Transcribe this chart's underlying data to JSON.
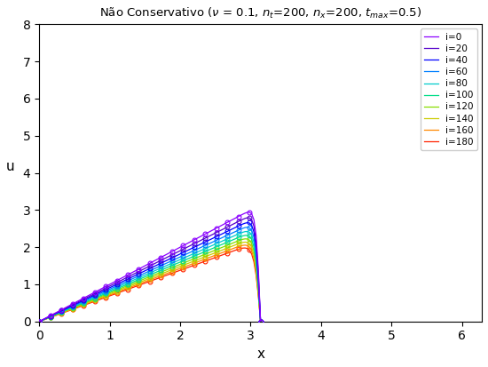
{
  "title": "Não Conservativo (ν = 0.1, $n_t$=200, $n_x$=200, $t_{max}$=0.5)",
  "xlabel": "x",
  "ylabel": "u",
  "xlim": [
    0,
    6.283185307
  ],
  "ylim": [
    0,
    8
  ],
  "nu": 0.1,
  "nt": 200,
  "nx": 200,
  "tmax": 0.5,
  "time_indices": [
    0,
    20,
    40,
    60,
    80,
    100,
    120,
    140,
    160,
    180
  ],
  "legend_labels": [
    "i=0",
    "i=20",
    "i=40",
    "i=60",
    "i=80",
    "i=100",
    "i=120",
    "i=140",
    "i=160",
    "i=180"
  ],
  "colors": [
    "#8B00FF",
    "#5500CC",
    "#0000FF",
    "#0080FF",
    "#00CCCC",
    "#00DD88",
    "#88DD00",
    "#CCCC00",
    "#FF8800",
    "#FF2200"
  ]
}
